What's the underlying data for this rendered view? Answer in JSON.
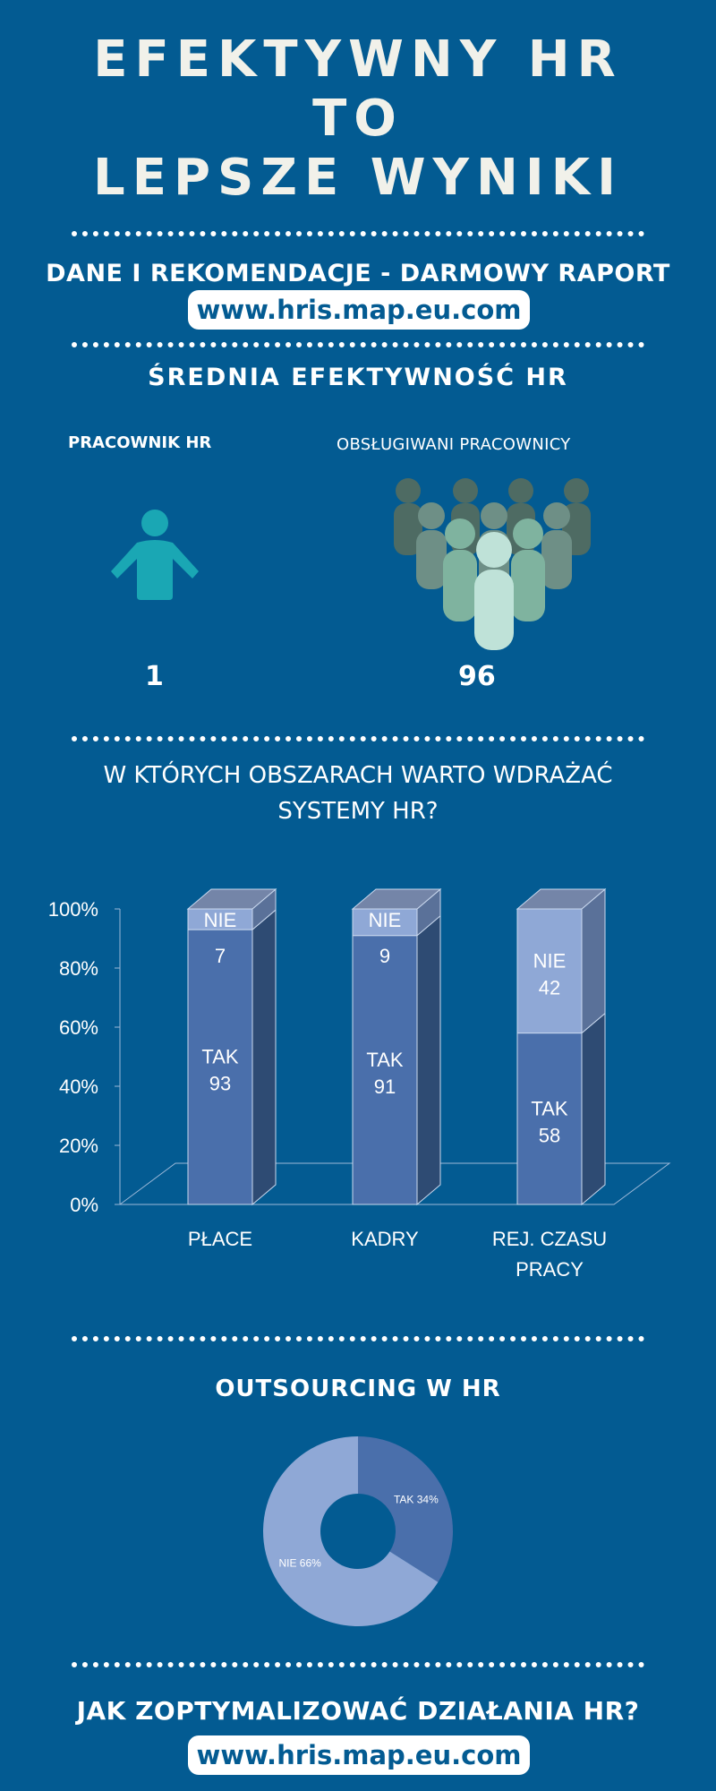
{
  "title": {
    "line1": "EFEKTYWNY HR",
    "line2": "TO",
    "line3": "LEPSZE WYNIKI"
  },
  "report": {
    "text": "DANE I REKOMENDACJE - DARMOWY RAPORT",
    "url": "www.hris.map.eu.com"
  },
  "efficiency": {
    "heading": "ŚREDNIA EFEKTYWNOŚĆ HR",
    "hr_label": "PRACOWNIK HR",
    "served_label": "OBSŁUGIWANI PRACOWNICY",
    "hr_value": "1",
    "served_value": "96",
    "icons": {
      "hr": "person-icon",
      "served": "crowd-icon"
    }
  },
  "areas_question": {
    "line1": "W KTÓRYCH OBSZARACH WARTO WDRAŻAĆ",
    "line2": "SYSTEMY HR?"
  },
  "outsourcing": {
    "heading": "OUTSOURCING W HR"
  },
  "footer": {
    "question": "JAK ZOPTYMALIZOWAĆ DZIAŁANIA HR?",
    "url": "www.hris.map.eu.com"
  },
  "colors": {
    "background": "#035b92",
    "tak": "#4a6fab",
    "nie": "#8fa8d6",
    "person": "#1aa7b4"
  },
  "chart_data": [
    {
      "type": "bar",
      "stacked": true,
      "percent": true,
      "categories": [
        [
          "PŁACE"
        ],
        [
          "KADRY"
        ],
        [
          "REJ. CZASU",
          "PRACY"
        ]
      ],
      "series": [
        {
          "name": "TAK",
          "values": [
            93,
            91,
            58
          ]
        },
        {
          "name": "NIE",
          "values": [
            7,
            9,
            42
          ]
        }
      ],
      "ylim": [
        0,
        100
      ],
      "yticks": [
        "0%",
        "20%",
        "40%",
        "60%",
        "80%",
        "100%"
      ],
      "data_label_layout": [
        "two-line",
        "two-line",
        "two-line"
      ]
    },
    {
      "type": "pie",
      "donut": true,
      "labels": [
        "TAK",
        "NIE"
      ],
      "values": [
        34,
        66
      ],
      "data_labels": [
        "TAK 34%",
        "NIE 66%"
      ]
    }
  ]
}
